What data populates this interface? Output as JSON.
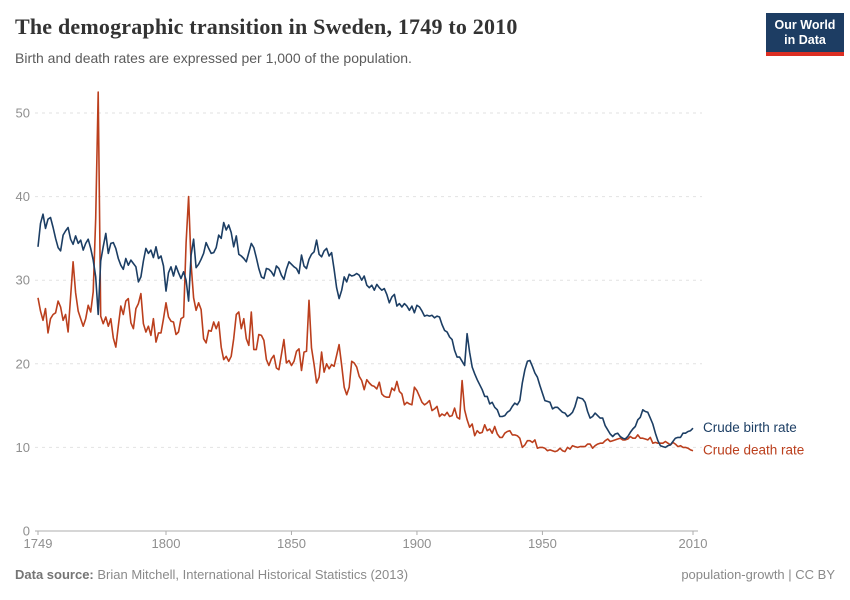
{
  "header": {
    "title": "The demographic transition in Sweden, 1749 to 2010",
    "subtitle": "Birth and death rates are expressed per 1,000 of the population.",
    "logo": {
      "line1": "Our World",
      "line2": "in Data"
    }
  },
  "colors": {
    "birth_line": "#1c3e64",
    "death_line": "#bb3f1d",
    "logo_navy": "#1d3d63",
    "logo_red": "#dc2e22",
    "gridline": "#e2e2e2",
    "axis": "#adadad",
    "tick_text": "#8f8f8f"
  },
  "chart_data": {
    "type": "line",
    "title": "The demographic transition in Sweden, 1749 to 2010",
    "subtitle": "Birth and death rates are expressed per 1,000 of the population.",
    "xlabel": "",
    "ylabel": "",
    "grid": "dashed-horizontal",
    "legend_position": "end-of-line",
    "ylim": [
      0,
      55
    ],
    "yticks": [
      0,
      10,
      20,
      30,
      40,
      50
    ],
    "xticks": [
      1749,
      1800,
      1850,
      1900,
      1950,
      2010
    ],
    "years": {
      "start": 1749,
      "end": 2010,
      "step": 1
    },
    "series": [
      {
        "id": "crude-birth-rate",
        "name": "Crude birth rate",
        "color": "#1c3e64",
        "values": [
          34.0,
          36.8,
          37.9,
          36.2,
          37.3,
          37.5,
          36.3,
          35.0,
          33.9,
          33.5,
          35.4,
          35.9,
          36.3,
          34.9,
          34.3,
          35.3,
          34.4,
          34.8,
          33.6,
          34.4,
          34.9,
          33.8,
          32.4,
          30.4,
          25.9,
          32.3,
          34.0,
          35.6,
          33.2,
          34.4,
          34.5,
          33.8,
          32.6,
          31.8,
          31.3,
          32.6,
          31.8,
          32.4,
          32.0,
          31.6,
          29.8,
          30.4,
          32.3,
          33.8,
          33.2,
          33.6,
          32.7,
          34.0,
          32.6,
          32.9,
          31.7,
          28.7,
          30.9,
          31.6,
          30.5,
          31.7,
          30.9,
          30.2,
          31.0,
          30.0,
          27.5,
          33.0,
          34.9,
          31.5,
          31.9,
          32.5,
          33.2,
          34.5,
          33.8,
          33.2,
          33.3,
          33.9,
          35.4,
          35.0,
          36.9,
          36.0,
          36.6,
          35.7,
          34.0,
          35.3,
          33.1,
          32.9,
          32.6,
          32.2,
          33.3,
          34.4,
          33.9,
          32.7,
          31.4,
          30.4,
          30.2,
          31.4,
          31.3,
          31.0,
          30.5,
          31.7,
          31.4,
          30.6,
          30.1,
          31.3,
          32.2,
          31.9,
          31.6,
          31.4,
          30.8,
          33.0,
          31.7,
          31.4,
          32.5,
          33.1,
          33.4,
          34.8,
          33.1,
          32.8,
          33.5,
          33.8,
          32.9,
          33.3,
          31.3,
          29.1,
          27.8,
          28.8,
          30.4,
          29.8,
          30.7,
          30.5,
          30.6,
          30.8,
          30.6,
          30.0,
          30.5,
          29.4,
          29.1,
          29.4,
          28.8,
          29.5,
          29.1,
          28.8,
          29.0,
          28.3,
          27.3,
          28.0,
          28.3,
          26.9,
          27.2,
          26.8,
          27.2,
          26.9,
          26.4,
          26.9,
          26.1,
          27.0,
          26.8,
          26.3,
          25.7,
          25.8,
          25.7,
          25.8,
          25.5,
          25.7,
          25.6,
          24.7,
          24.0,
          23.8,
          23.2,
          22.9,
          21.6,
          20.8,
          20.8,
          20.3,
          19.8,
          23.6,
          21.4,
          19.6,
          18.8,
          18.1,
          17.5,
          16.9,
          16.1,
          16.1,
          15.2,
          15.4,
          14.8,
          14.5,
          13.7,
          13.7,
          13.8,
          14.2,
          14.4,
          14.9,
          15.3,
          15.1,
          15.6,
          17.7,
          19.3,
          20.3,
          20.4,
          19.7,
          18.9,
          18.4,
          17.4,
          16.5,
          15.6,
          15.5,
          15.4,
          14.6,
          14.8,
          14.8,
          14.5,
          14.2,
          14.1,
          13.7,
          13.9,
          14.2,
          14.9,
          16.0,
          15.9,
          15.8,
          15.4,
          14.3,
          13.5,
          13.7,
          14.1,
          13.8,
          13.5,
          13.5,
          12.6,
          12.1,
          11.6,
          11.3,
          11.6,
          11.7,
          11.3,
          11.1,
          11.0,
          11.3,
          11.8,
          12.2,
          12.5,
          13.3,
          13.6,
          14.5,
          14.3,
          14.2,
          13.5,
          12.8,
          11.7,
          10.8,
          10.2,
          10.1,
          10.0,
          10.2,
          10.3,
          10.7,
          11.1,
          11.2,
          11.2,
          11.7,
          11.7,
          11.9,
          12.0,
          12.3
        ]
      },
      {
        "id": "crude-death-rate",
        "name": "Crude death rate",
        "color": "#bb3f1d",
        "values": [
          27.9,
          26.3,
          25.2,
          26.6,
          23.7,
          25.4,
          25.9,
          26.1,
          27.5,
          26.8,
          25.2,
          25.9,
          23.8,
          28.0,
          32.2,
          28.5,
          26.3,
          25.4,
          24.5,
          25.4,
          27.0,
          26.2,
          28.6,
          37.4,
          52.5,
          25.7,
          24.8,
          25.6,
          24.5,
          25.4,
          23.1,
          22.0,
          24.5,
          26.9,
          25.9,
          27.5,
          27.8,
          24.9,
          24.2,
          26.6,
          27.2,
          28.4,
          24.8,
          23.8,
          24.5,
          23.4,
          25.4,
          22.6,
          23.7,
          23.7,
          25.4,
          27.3,
          25.6,
          25.1,
          25.0,
          23.5,
          23.8,
          25.4,
          25.6,
          34.5,
          40.0,
          31.9,
          27.9,
          26.4,
          27.3,
          26.5,
          23.0,
          22.5,
          24.0,
          23.9,
          25.0,
          24.2,
          25.0,
          22.0,
          20.5,
          20.9,
          20.3,
          20.9,
          23.0,
          25.9,
          26.2,
          24.2,
          25.4,
          23.0,
          22.2,
          26.2,
          21.7,
          21.7,
          23.5,
          23.4,
          22.8,
          20.5,
          19.8,
          20.6,
          21.0,
          19.5,
          19.3,
          21.1,
          22.9,
          20.1,
          20.4,
          19.8,
          20.3,
          21.5,
          21.8,
          19.2,
          21.4,
          21.5,
          27.6,
          21.9,
          19.9,
          17.7,
          18.4,
          21.4,
          19.0,
          20.0,
          19.4,
          19.9,
          19.7,
          21.0,
          22.3,
          19.8,
          17.2,
          16.3,
          17.2,
          20.3,
          20.1,
          19.6,
          18.5,
          18.0,
          16.9,
          18.1,
          17.7,
          17.4,
          17.3,
          17.0,
          17.8,
          16.4,
          16.1,
          16.0,
          16.0,
          17.1,
          16.8,
          17.9,
          16.7,
          16.4,
          15.1,
          15.4,
          15.2,
          15.1,
          17.2,
          16.8,
          16.1,
          15.4,
          15.1,
          15.3,
          15.6,
          14.4,
          14.6,
          14.9,
          13.7,
          14.0,
          13.8,
          14.2,
          13.7,
          13.8,
          14.7,
          13.6,
          13.4,
          18.0,
          14.5,
          13.3,
          12.4,
          12.8,
          11.4,
          12.0,
          11.7,
          11.8,
          12.7,
          12.0,
          12.2,
          11.7,
          12.5,
          11.6,
          11.2,
          11.2,
          11.7,
          11.9,
          12.0,
          11.5,
          11.5,
          11.4,
          11.1,
          10.0,
          10.3,
          10.8,
          10.8,
          10.6,
          10.9,
          9.9,
          10.0,
          10.0,
          9.9,
          9.6,
          9.7,
          9.6,
          9.5,
          9.6,
          9.9,
          9.6,
          9.5,
          10.0,
          9.8,
          10.2,
          10.1,
          10.0,
          10.1,
          10.1,
          10.1,
          10.4,
          10.4,
          9.9,
          10.2,
          10.4,
          10.5,
          10.5,
          10.8,
          11.0,
          10.7,
          10.8,
          10.9,
          11.0,
          11.1,
          10.9,
          10.9,
          11.0,
          11.3,
          11.1,
          11.1,
          11.5,
          11.1,
          11.1,
          11.0,
          10.9,
          11.2,
          10.5,
          10.6,
          10.5,
          10.5,
          10.5,
          10.7,
          10.5,
          10.3,
          10.6,
          10.4,
          10.1,
          10.2,
          10.0,
          10.0,
          9.9,
          9.7,
          9.6
        ]
      }
    ]
  },
  "footer": {
    "source_label": "Data source:",
    "source_text": " Brian Mitchell, International Historical Statistics (2013)",
    "right_text": "population-growth | CC BY"
  }
}
